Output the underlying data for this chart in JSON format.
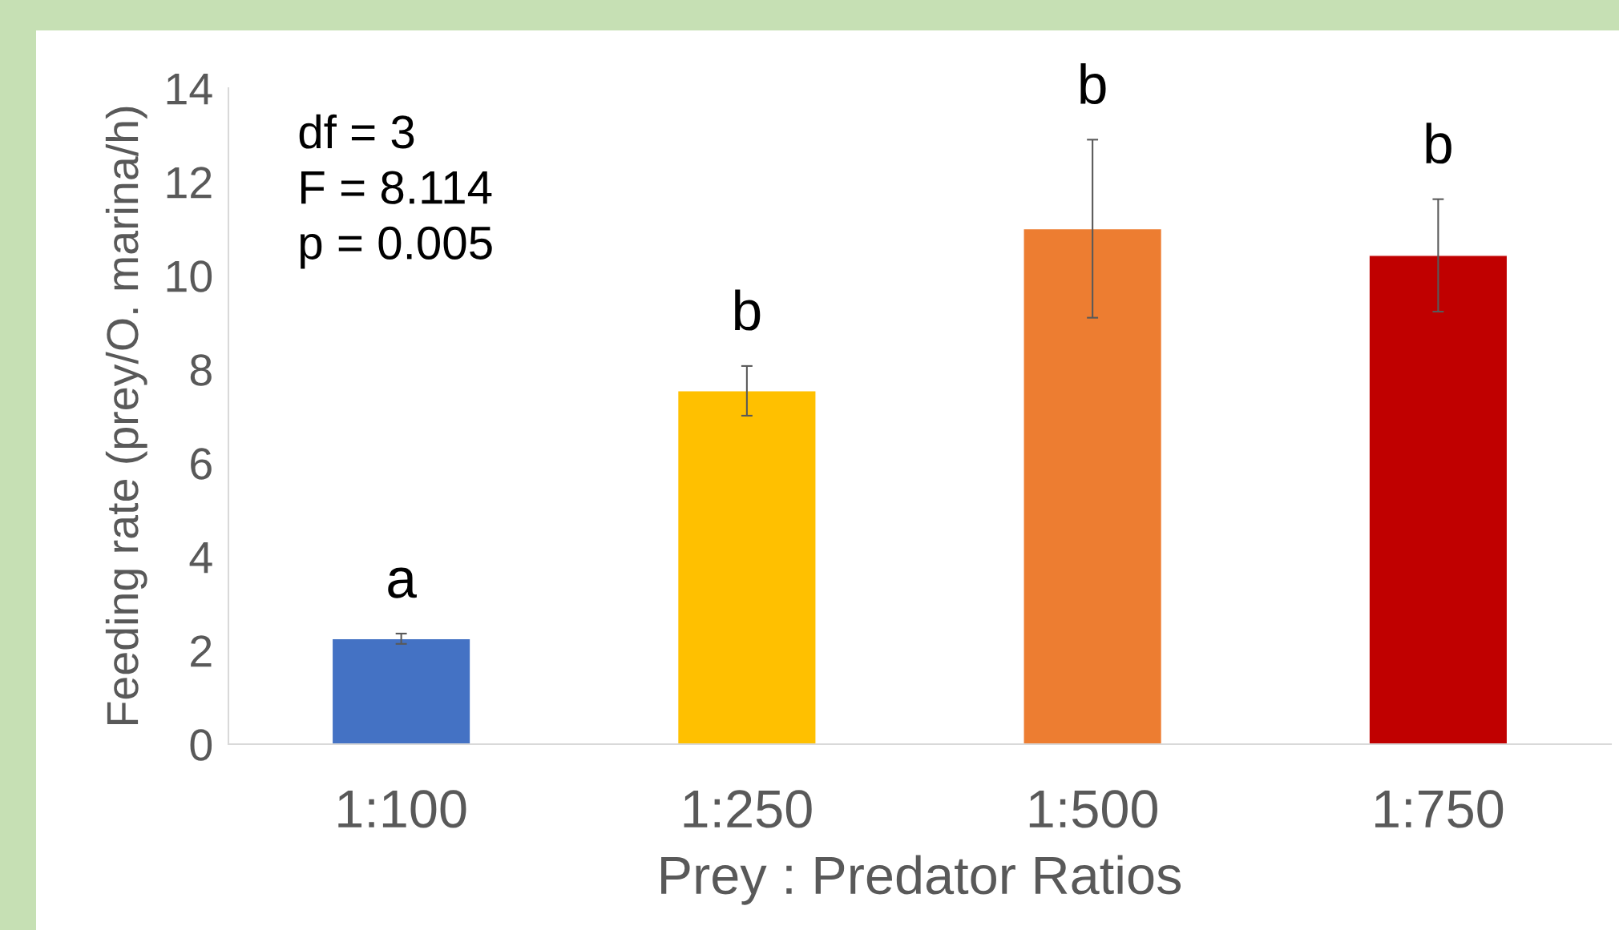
{
  "chart_data": {
    "type": "bar",
    "xlabel": "Prey : Predator Ratios",
    "ylabel": "Feeding rate (prey/O. marina/h)",
    "categories": [
      "1:100",
      "1:250",
      "1:500",
      "1:750"
    ],
    "values": [
      2.25,
      7.54,
      11.0,
      10.43
    ],
    "colors": [
      "#4472c4",
      "#ffc000",
      "#ed7d31",
      "#c00000"
    ],
    "errors": [
      0.11,
      0.53,
      1.9,
      1.2
    ],
    "ylim": [
      0,
      14
    ],
    "yticks": [
      0,
      2,
      4,
      6,
      8,
      10,
      12,
      14
    ],
    "grid": false,
    "annotations": [
      "df = 3\nF = 8.114\np = 0.005",
      "a",
      "b",
      "b",
      "b"
    ]
  }
}
